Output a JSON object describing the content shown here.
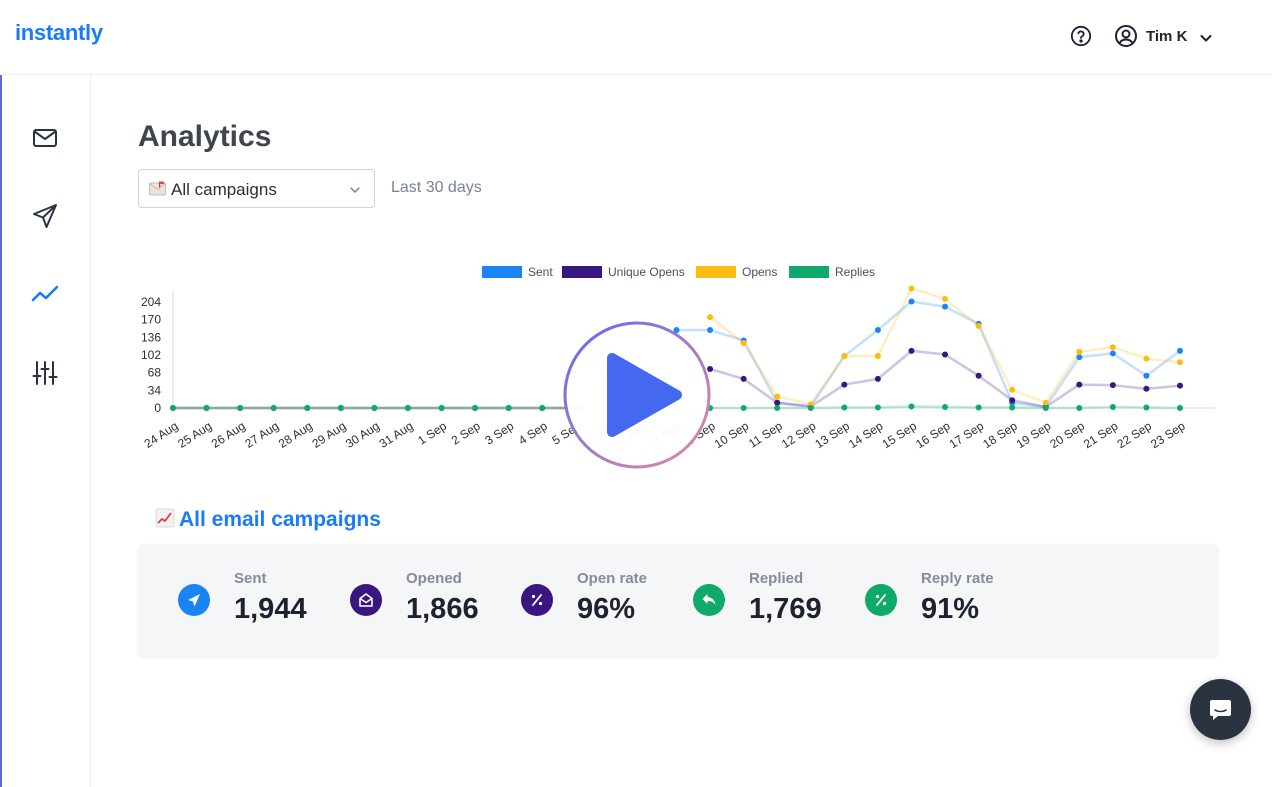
{
  "brand": {
    "name": "instantly"
  },
  "header": {
    "user_name": "Tim K"
  },
  "sidebar": {
    "items": [
      {
        "icon": "mail-icon"
      },
      {
        "icon": "send-icon"
      },
      {
        "icon": "analytics-icon",
        "active": true
      },
      {
        "icon": "settings-sliders-icon"
      }
    ]
  },
  "main": {
    "title": "Analytics",
    "campaign_select": {
      "value": "All campaigns",
      "icon": "mail-emoji-icon"
    },
    "date_range": "Last 30 days",
    "section_title": "All email campaigns",
    "stats": [
      {
        "label": "Sent",
        "value": "1,944",
        "icon": "send-arrow-icon",
        "color": "#1a84f5"
      },
      {
        "label": "Opened",
        "value": "1,866",
        "icon": "open-envelope-icon",
        "color": "#3a1680"
      },
      {
        "label": "Open rate",
        "value": "96%",
        "icon": "percent-icon",
        "color": "#3a1680"
      },
      {
        "label": "Replied",
        "value": "1,769",
        "icon": "reply-icon",
        "color": "#0faa6a"
      },
      {
        "label": "Reply rate",
        "value": "91%",
        "icon": "percent-icon",
        "color": "#0faa6a"
      }
    ]
  },
  "chart_data": {
    "type": "line",
    "categories": [
      "24 Aug",
      "25 Aug",
      "26 Aug",
      "27 Aug",
      "28 Aug",
      "29 Aug",
      "30 Aug",
      "31 Aug",
      "1 Sep",
      "2 Sep",
      "3 Sep",
      "4 Sep",
      "5 Sep",
      "6 Sep",
      "7 Sep",
      "8 Sep",
      "9 Sep",
      "10 Sep",
      "11 Sep",
      "12 Sep",
      "13 Sep",
      "14 Sep",
      "15 Sep",
      "16 Sep",
      "17 Sep",
      "18 Sep",
      "19 Sep",
      "20 Sep",
      "21 Sep",
      "22 Sep",
      "23 Sep"
    ],
    "yticks": [
      0,
      34,
      68,
      102,
      136,
      170,
      204
    ],
    "ylim": [
      0,
      204
    ],
    "legend_position": "top",
    "series": [
      {
        "name": "Sent",
        "color": "#1a84f5",
        "values": [
          0,
          0,
          0,
          0,
          0,
          0,
          0,
          0,
          0,
          0,
          0,
          0,
          0,
          null,
          null,
          150,
          150,
          130,
          10,
          3,
          100,
          150,
          205,
          195,
          162,
          10,
          2,
          98,
          105,
          62,
          110
        ]
      },
      {
        "name": "Unique Opens",
        "color": "#3a1680",
        "values": [
          0,
          0,
          0,
          0,
          0,
          0,
          0,
          0,
          0,
          0,
          0,
          0,
          0,
          null,
          null,
          null,
          75,
          56,
          10,
          3,
          45,
          56,
          110,
          103,
          62,
          15,
          2,
          45,
          44,
          37,
          43
        ]
      },
      {
        "name": "Opens",
        "color": "#fbbd12",
        "values": [
          0,
          0,
          0,
          0,
          0,
          0,
          0,
          0,
          0,
          0,
          0,
          0,
          0,
          null,
          null,
          null,
          175,
          125,
          22,
          7,
          100,
          100,
          230,
          210,
          158,
          35,
          10,
          108,
          117,
          95,
          88
        ]
      },
      {
        "name": "Replies",
        "color": "#0faa6a",
        "values": [
          0,
          0,
          0,
          0,
          0,
          0,
          0,
          0,
          0,
          0,
          0,
          0,
          0,
          null,
          null,
          null,
          0,
          0,
          0,
          0,
          1,
          1,
          3,
          2,
          1,
          1,
          0,
          0,
          2,
          1,
          0
        ]
      }
    ]
  }
}
